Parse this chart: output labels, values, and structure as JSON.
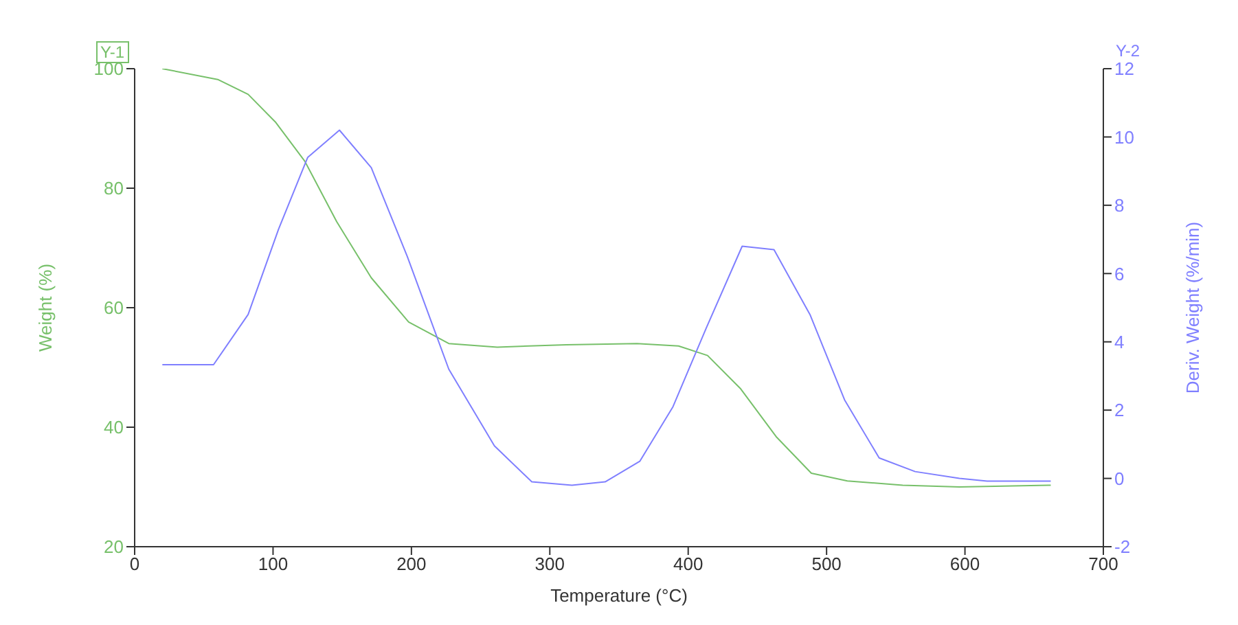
{
  "chart_data": {
    "type": "line",
    "xlabel": "Temperature (°C)",
    "ylabel": "Weight (%)",
    "y2label": "Deriv. Weight (%/min)",
    "annotations": [
      "Y-1",
      "Y-2"
    ],
    "xlim": [
      0,
      700
    ],
    "xticks": [
      0,
      100,
      200,
      300,
      400,
      500,
      600,
      700
    ],
    "ylim": [
      20,
      100
    ],
    "yticks": [
      20,
      40,
      60,
      80,
      100
    ],
    "y2lim": [
      -2,
      12
    ],
    "y2ticks": [
      -2,
      0,
      2,
      4,
      6,
      8,
      10,
      12
    ],
    "grid": false,
    "marker": "none",
    "line_style": "solid",
    "series": [
      {
        "color": "#77c06a",
        "x": [
          20,
          60,
          82,
          102,
          123,
          146,
          171,
          198,
          227,
          262,
          312,
          363,
          393,
          414,
          438,
          464,
          489,
          515,
          555,
          596,
          662
        ],
        "values": [
          100,
          98.2,
          95.7,
          91,
          84.5,
          74.4,
          65,
          57.6,
          54,
          53.4,
          53.8,
          54,
          53.6,
          52,
          46.4,
          38.3,
          32.3,
          31,
          30.3,
          30,
          30.3
        ]
      },
      {
        "color": "#7f7fff",
        "axis": "y2",
        "x": [
          20,
          57,
          82,
          104,
          125,
          148,
          171,
          197,
          227,
          260,
          287,
          316,
          340,
          365,
          389,
          413,
          439,
          462,
          488,
          513,
          538,
          564,
          596,
          616,
          662
        ],
        "values": [
          3.33,
          3.33,
          4.8,
          7.3,
          9.4,
          10.2,
          9.1,
          6.5,
          3.2,
          0.95,
          -0.1,
          -0.2,
          -0.1,
          0.5,
          2.1,
          4.4,
          6.8,
          6.7,
          4.8,
          2.3,
          0.6,
          0.2,
          0,
          -0.08,
          -0.08
        ]
      }
    ]
  }
}
